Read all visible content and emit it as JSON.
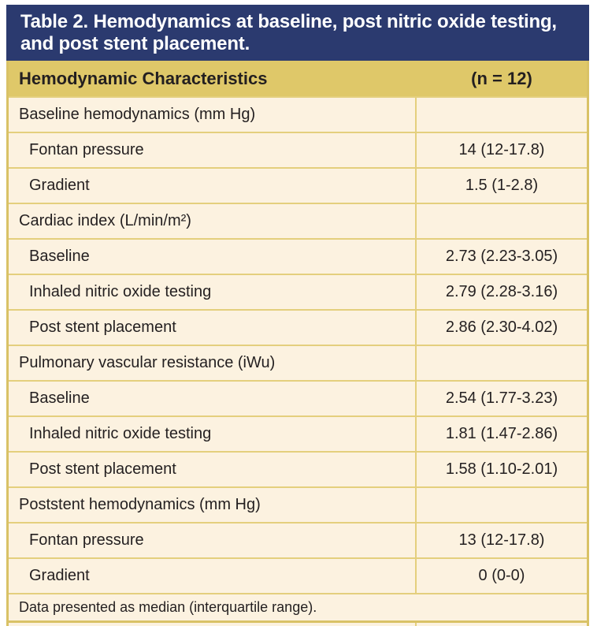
{
  "colors": {
    "navy_header": "#2b3a6f",
    "gold_header": "#dfc869",
    "row_background": "#fcf2e0",
    "inner_border": "#e4cf7d",
    "outer_border": "#d9c266",
    "title_text": "#ffffff",
    "body_text": "#231f20"
  },
  "table": {
    "title": "Table 2. Hemodynamics at baseline, post nitric oxide testing, and post stent placement.",
    "columns": [
      "Hemodynamic Characteristics",
      "(n = 12)"
    ],
    "rows": [
      {
        "label": "Baseline hemodynamics (mm Hg)",
        "value": "",
        "indent": false
      },
      {
        "label": "Fontan pressure",
        "value": "14 (12-17.8)",
        "indent": true
      },
      {
        "label": "Gradient",
        "value": "1.5 (1-2.8)",
        "indent": true
      },
      {
        "label": "Cardiac index (L/min/m²)",
        "value": "",
        "indent": false
      },
      {
        "label": "Baseline",
        "value": "2.73 (2.23-3.05)",
        "indent": true
      },
      {
        "label": "Inhaled nitric oxide testing",
        "value": "2.79 (2.28-3.16)",
        "indent": true
      },
      {
        "label": "Post stent placement",
        "value": "2.86 (2.30-4.02)",
        "indent": true
      },
      {
        "label": "Pulmonary vascular resistance (iWu)",
        "value": "",
        "indent": false
      },
      {
        "label": "Baseline",
        "value": "2.54 (1.77-3.23)",
        "indent": true
      },
      {
        "label": "Inhaled nitric oxide testing",
        "value": "1.81 (1.47-2.86)",
        "indent": true
      },
      {
        "label": "Post stent placement",
        "value": "1.58 (1.10-2.01)",
        "indent": true
      },
      {
        "label": "Poststent hemodynamics (mm Hg)",
        "value": "",
        "indent": false
      },
      {
        "label": "Fontan pressure",
        "value": "13 (12-17.8)",
        "indent": true
      },
      {
        "label": "Gradient",
        "value": "0 (0-0)",
        "indent": true
      }
    ],
    "footnote": "Data presented as median (interquartile range)."
  }
}
